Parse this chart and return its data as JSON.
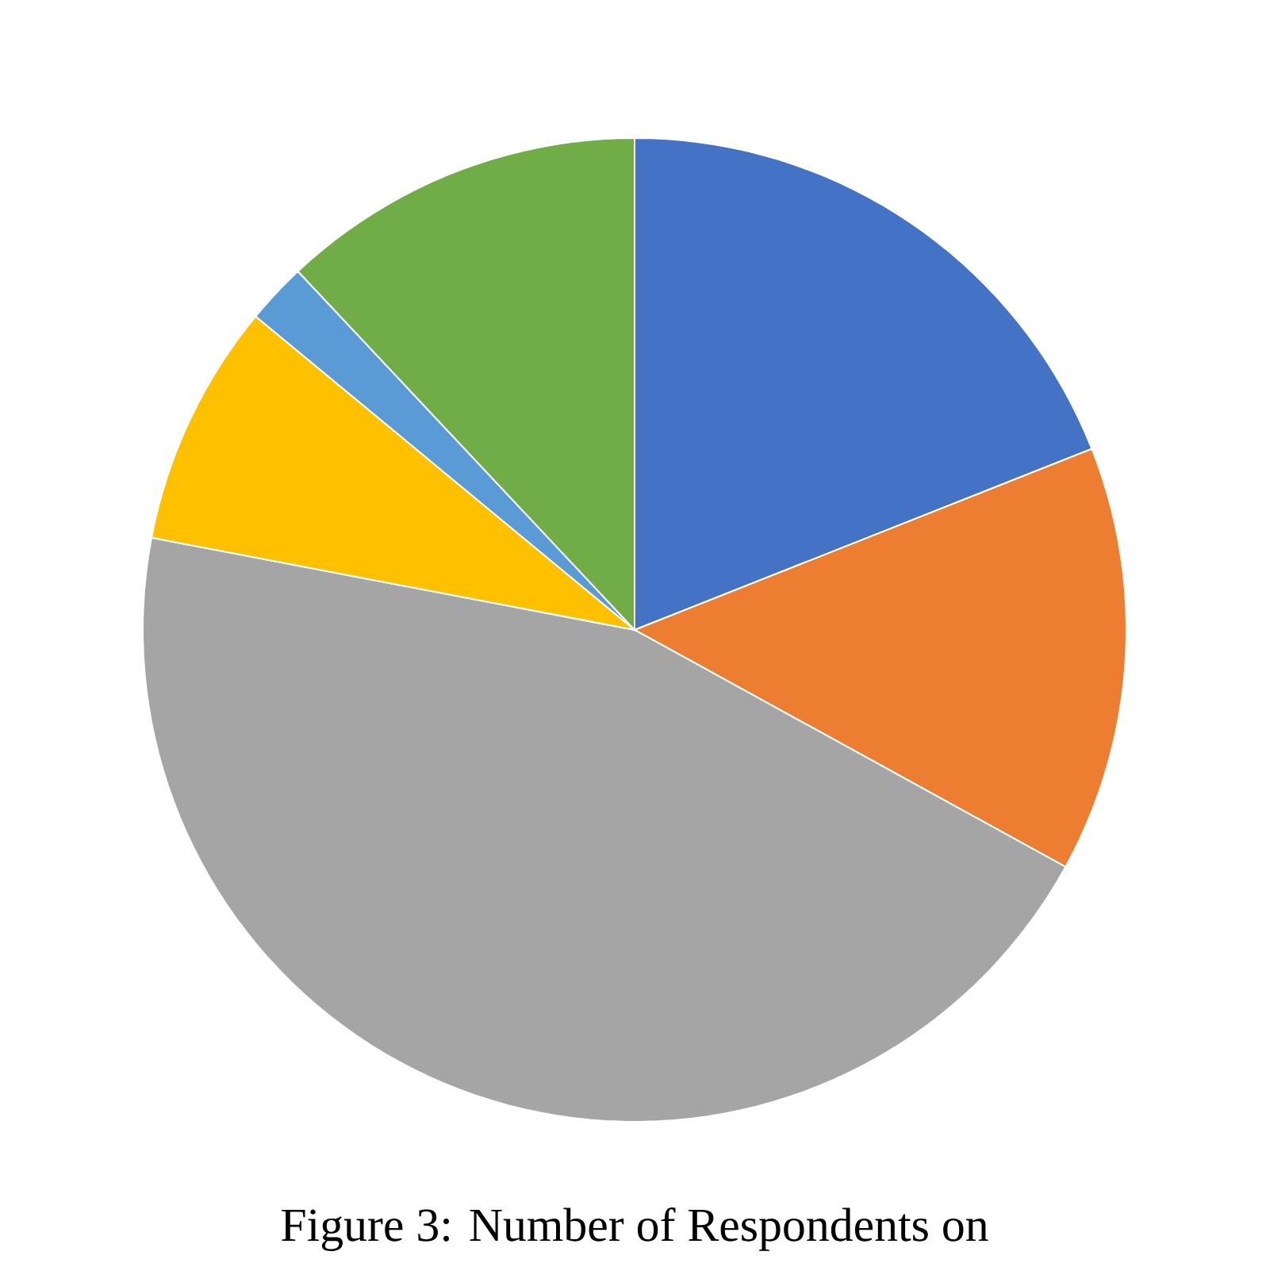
{
  "chart_data": {
    "type": "pie",
    "categories": [
      null,
      null,
      null,
      null,
      null,
      null
    ],
    "values": [
      19,
      14,
      45,
      8,
      2,
      12
    ],
    "colors": [
      "#4472c4",
      "#ed7d31",
      "#a5a5a5",
      "#ffc000",
      "#5b9bd5",
      "#70ad47"
    ],
    "annotations": [
      "Figure 3: Number of Respondents on"
    ]
  }
}
